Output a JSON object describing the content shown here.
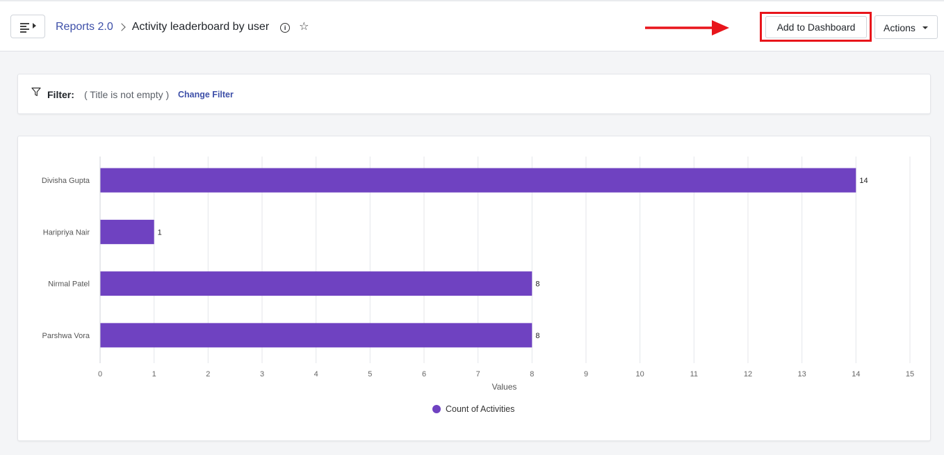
{
  "header": {
    "breadcrumb_parent": "Reports 2.0",
    "page_title": "Activity leaderboard by user",
    "add_to_dashboard_label": "Add to Dashboard",
    "actions_label": "Actions"
  },
  "icons": {
    "menu": "sidebar-toggle-icon",
    "info": "info-icon",
    "star": "star-icon",
    "filter": "filter-icon",
    "caret": "caret-down-icon"
  },
  "colors": {
    "bar": "#6f42c1",
    "link": "#3d4fa8",
    "highlight": "#e8151b"
  },
  "filter": {
    "label": "Filter:",
    "condition": "( Title is not empty )",
    "change_label": "Change Filter"
  },
  "chart_data": {
    "type": "bar",
    "orientation": "horizontal",
    "categories": [
      "Divisha Gupta",
      "Haripriya Nair",
      "Nirmal Patel",
      "Parshwa Vora"
    ],
    "series": [
      {
        "name": "Count of Activities",
        "values": [
          14,
          1,
          8,
          8
        ]
      }
    ],
    "xlabel": "Values",
    "ylabel": "",
    "xlim": [
      0,
      15
    ],
    "xticks": [
      0,
      1,
      2,
      3,
      4,
      5,
      6,
      7,
      8,
      9,
      10,
      11,
      12,
      13,
      14,
      15
    ],
    "data_labels": true,
    "grid": "vertical",
    "legend": "bottom-center"
  }
}
